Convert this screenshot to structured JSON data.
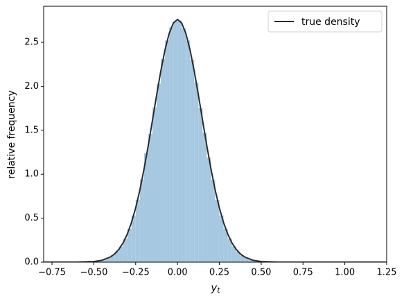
{
  "chart_data": {
    "type": "histogram",
    "xlabel": {
      "base": "y",
      "sub": "t"
    },
    "ylabel": "relative frequency",
    "xlim": [
      -0.8,
      1.25
    ],
    "ylim": [
      0,
      2.91
    ],
    "xticks": [
      {
        "value": -0.75,
        "label": "−0.75"
      },
      {
        "value": -0.5,
        "label": "−0.50"
      },
      {
        "value": -0.25,
        "label": "−0.25"
      },
      {
        "value": 0,
        "label": "0.00"
      },
      {
        "value": 0.25,
        "label": "0.25"
      },
      {
        "value": 0.5,
        "label": "0.50"
      },
      {
        "value": 0.75,
        "label": "0.75"
      },
      {
        "value": 1,
        "label": "1.00"
      },
      {
        "value": 1.25,
        "label": "1.25"
      }
    ],
    "yticks": [
      {
        "value": 0,
        "label": "0.0"
      },
      {
        "value": 0.5,
        "label": "0.5"
      },
      {
        "value": 1,
        "label": "1.0"
      },
      {
        "value": 1.5,
        "label": "1.5"
      },
      {
        "value": 2,
        "label": "2.0"
      },
      {
        "value": 2.5,
        "label": "2.5"
      }
    ],
    "color": "#a6c8e0",
    "bins": [
      -0.5,
      -0.475,
      -0.45,
      -0.425,
      -0.4,
      -0.375,
      -0.35,
      -0.325,
      -0.3,
      -0.275,
      -0.25,
      -0.225,
      -0.2,
      -0.175,
      -0.15,
      -0.125,
      -0.1,
      -0.075,
      -0.05,
      -0.025,
      0,
      0.025,
      0.05,
      0.075,
      0.1,
      0.125,
      0.15,
      0.175,
      0.2,
      0.225,
      0.25,
      0.275,
      0.3,
      0.325,
      0.35,
      0.375,
      0.4,
      0.425,
      0.45,
      0.475,
      0.5
    ],
    "counts": [
      0.009,
      0.017,
      0.027,
      0.048,
      0.078,
      0.121,
      0.178,
      0.27,
      0.38,
      0.53,
      0.71,
      0.94,
      1.24,
      1.46,
      1.76,
      2.03,
      2.31,
      2.52,
      2.67,
      2.74,
      2.75,
      2.66,
      2.52,
      2.3,
      2.04,
      1.75,
      1.47,
      1.19,
      0.94,
      0.71,
      0.53,
      0.38,
      0.266,
      0.18,
      0.119,
      0.076,
      0.047,
      0.028,
      0.016,
      0.009
    ],
    "line": {
      "name": "true density",
      "color": "#2b2b2b",
      "x": [
        -0.8,
        -0.7,
        -0.6,
        -0.5,
        -0.45,
        -0.4,
        -0.375,
        -0.35,
        -0.325,
        -0.3,
        -0.275,
        -0.25,
        -0.225,
        -0.2,
        -0.175,
        -0.15,
        -0.125,
        -0.1,
        -0.075,
        -0.05,
        -0.025,
        0,
        0.025,
        0.05,
        0.075,
        0.1,
        0.125,
        0.15,
        0.175,
        0.2,
        0.225,
        0.25,
        0.275,
        0.3,
        0.325,
        0.35,
        0.375,
        0.4,
        0.45,
        0.5,
        0.6,
        0.7,
        0.8,
        1.0,
        1.25
      ],
      "values": [
        0,
        0,
        0,
        0.007,
        0.022,
        0.06,
        0.095,
        0.147,
        0.22,
        0.32,
        0.451,
        0.618,
        0.821,
        1.059,
        1.325,
        1.61,
        1.898,
        2.172,
        2.412,
        2.6,
        2.719,
        2.76,
        2.719,
        2.6,
        2.412,
        2.172,
        1.898,
        1.61,
        1.325,
        1.059,
        0.821,
        0.618,
        0.451,
        0.32,
        0.22,
        0.147,
        0.095,
        0.06,
        0.022,
        0.007,
        0,
        0,
        0,
        0,
        0
      ]
    },
    "legend": "upper right"
  }
}
